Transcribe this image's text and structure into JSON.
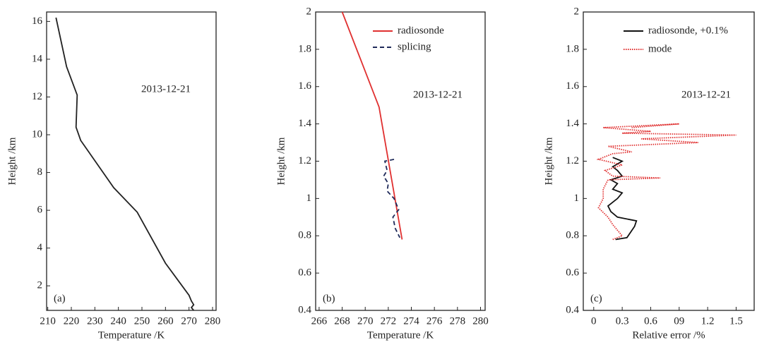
{
  "chart_data": [
    {
      "type": "line",
      "xlabel": "Temperature /K",
      "ylabel": "Height /km",
      "annotation": "2013-12-21",
      "panel_label": "(a)",
      "color": "#222222",
      "x": [
        213.5,
        218,
        222.5,
        222,
        224,
        238,
        248,
        260,
        270,
        271,
        272,
        271,
        272
      ],
      "values": [
        16.2,
        13.6,
        12.1,
        10.4,
        9.7,
        7.2,
        5.9,
        3.2,
        1.5,
        1.2,
        1.0,
        0.85,
        0.7
      ],
      "xlim": [
        209.5,
        281.5
      ],
      "xticks": [
        210,
        220,
        230,
        240,
        250,
        260,
        270,
        280
      ],
      "ylim": [
        0.7,
        16.5
      ],
      "yticks": [
        2,
        4,
        6,
        8,
        10,
        12,
        14,
        16
      ]
    },
    {
      "type": "line",
      "xlabel": "Temperature /K",
      "ylabel": "Height /km",
      "annotation": "2013-12-21",
      "panel_label": "(b)",
      "series": [
        {
          "name": "radiosonde",
          "color": "#e03030",
          "dash": "solid",
          "x": [
            268,
            271.2,
            273.2
          ],
          "values": [
            2.0,
            1.49,
            0.78
          ]
        },
        {
          "name": "splicing",
          "color": "#1f2a5a",
          "dash": "dashed",
          "x": [
            272.5,
            271.7,
            271.9,
            271.6,
            272.0,
            271.9,
            272.5,
            272.7,
            272.9,
            272.4,
            272.6,
            273.0
          ],
          "values": [
            1.21,
            1.2,
            1.15,
            1.12,
            1.08,
            1.04,
            1.0,
            0.97,
            0.94,
            0.9,
            0.84,
            0.79
          ]
        }
      ],
      "xlim": [
        265.7,
        280.4
      ],
      "xticks": [
        266,
        268,
        270,
        272,
        274,
        276,
        278,
        280
      ],
      "ylim": [
        0.4,
        2.0
      ],
      "yticks": [
        0.4,
        0.6,
        0.8,
        1.0,
        1.2,
        1.4,
        1.6,
        1.8,
        2.0
      ]
    },
    {
      "type": "line",
      "xlabel": "Relative error /%",
      "ylabel": "Height /km",
      "annotation": "2013-12-21",
      "panel_label": "(c)",
      "series": [
        {
          "name": "radiosonde, +0.1%",
          "color": "#111111",
          "dash": "solid",
          "x": [
            0.23,
            0.35,
            0.43,
            0.45,
            0.25,
            0.18,
            0.15,
            0.2,
            0.25,
            0.3,
            0.2,
            0.25,
            0.18,
            0.3,
            0.25,
            0.2,
            0.3,
            0.2
          ],
          "values": [
            0.78,
            0.79,
            0.85,
            0.88,
            0.9,
            0.93,
            0.96,
            0.98,
            1.0,
            1.03,
            1.05,
            1.08,
            1.1,
            1.12,
            1.15,
            1.17,
            1.2,
            1.22
          ]
        },
        {
          "name": "mode",
          "color": "#e03030",
          "dash": "dotted",
          "x": [
            0.2,
            0.3,
            0.2,
            0.15,
            0.05,
            0.1,
            0.1,
            0.15,
            0.7,
            0.2,
            0.12,
            0.3,
            0.05,
            0.2,
            0.4,
            0.15,
            1.1,
            0.5,
            1.5,
            0.3,
            0.6,
            0.1,
            0.9,
            0.4
          ],
          "values": [
            0.78,
            0.8,
            0.86,
            0.9,
            0.95,
            1.0,
            1.05,
            1.1,
            1.11,
            1.12,
            1.15,
            1.18,
            1.21,
            1.24,
            1.25,
            1.28,
            1.3,
            1.32,
            1.34,
            1.35,
            1.36,
            1.38,
            1.4,
            1.38
          ]
        }
      ],
      "xlim": [
        -0.11,
        1.69
      ],
      "xticks": [
        0,
        0.3,
        0.6,
        {
          "value": 0.9,
          "label": "09"
        },
        1.2,
        1.5
      ],
      "ylim": [
        0.4,
        2.0
      ],
      "yticks": [
        0.4,
        0.6,
        0.8,
        1.0,
        1.2,
        1.4,
        1.6,
        1.8,
        2.0
      ]
    }
  ]
}
